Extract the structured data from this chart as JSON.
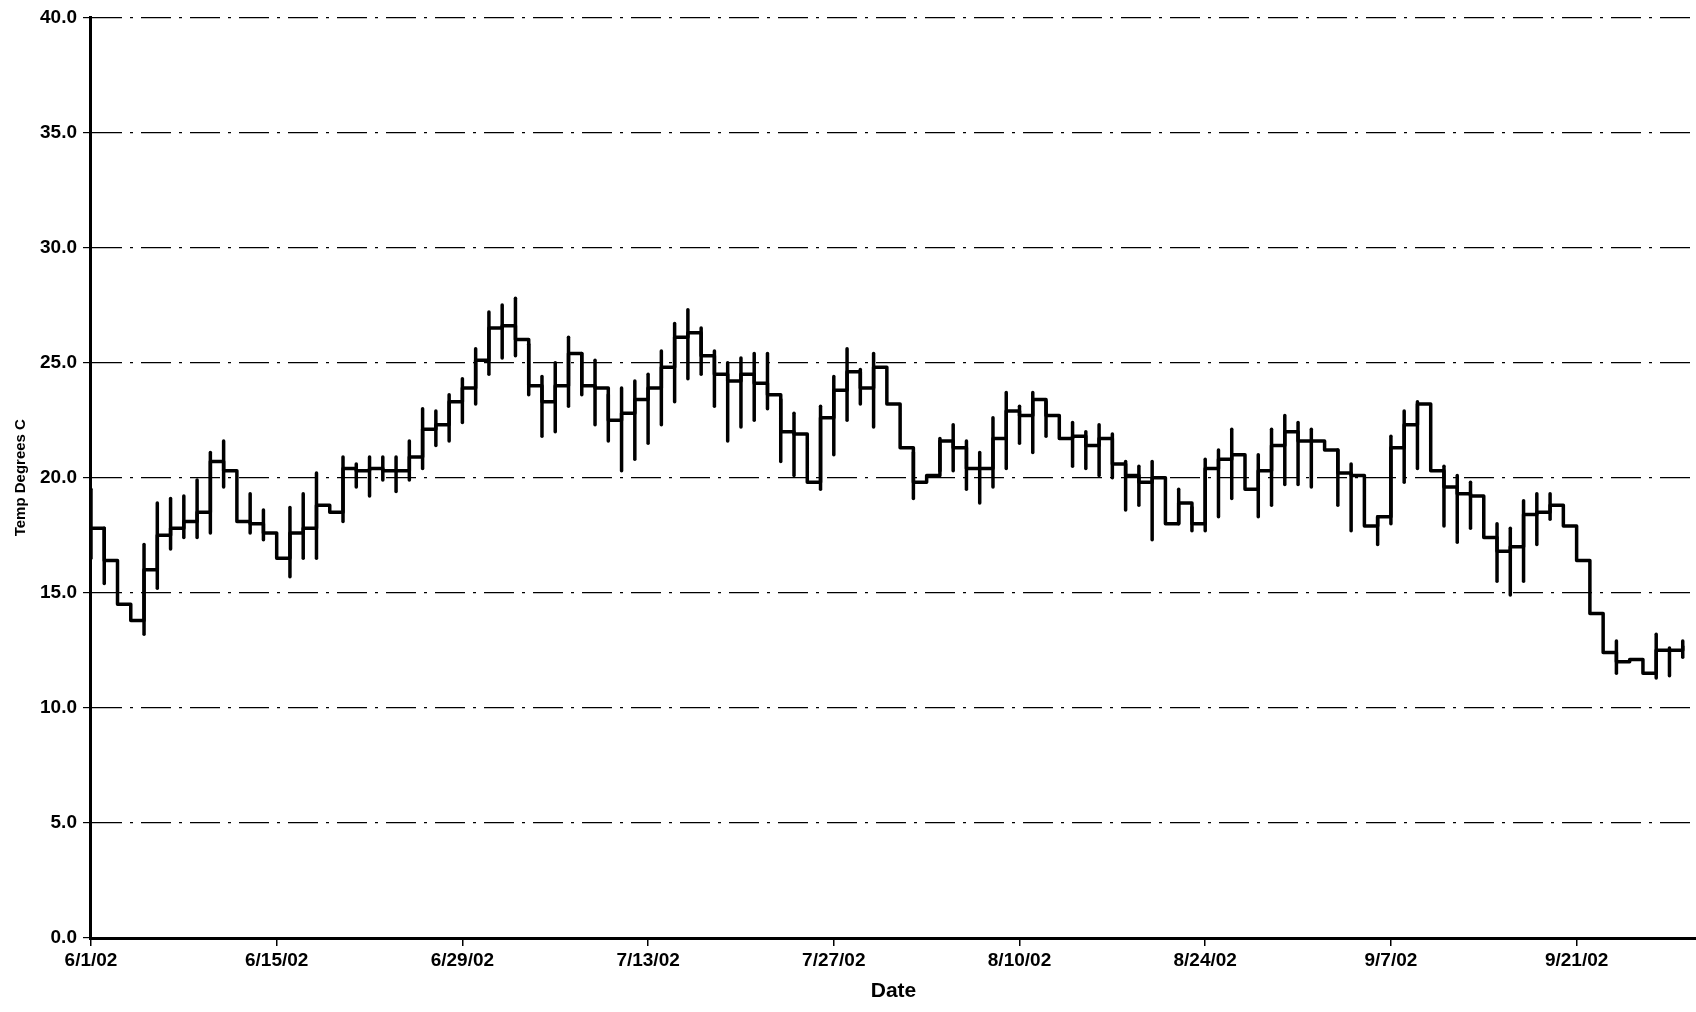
{
  "chart_data": {
    "type": "step",
    "xlabel": "Date",
    "ylabel": "Temp Degrees C",
    "x": [
      "--06-01",
      "--06-02",
      "--06-03",
      "--06-04",
      "--06-05",
      "--06-06",
      "--06-07",
      "--06-08",
      "--06-09",
      "--06-10",
      "--06-11",
      "--06-12",
      "--06-13",
      "--06-14",
      "--06-15",
      "--06-16",
      "--06-17",
      "--06-18",
      "--06-19",
      "--06-20",
      "--06-21",
      "--06-22",
      "--06-23",
      "--06-24",
      "--06-25",
      "--06-26",
      "--06-27",
      "--06-28",
      "--06-29",
      "--06-30",
      "--07-01",
      "--07-02",
      "--07-03",
      "--07-04",
      "--07-05",
      "--07-06",
      "--07-07",
      "--07-08",
      "--07-09",
      "--07-10",
      "--07-11",
      "--07-12",
      "--07-13",
      "--07-14",
      "--07-15",
      "--07-16",
      "--07-17",
      "--07-18",
      "--07-19",
      "--07-20",
      "--07-21",
      "--07-22",
      "--07-23",
      "--07-24",
      "--07-25",
      "--07-26",
      "--07-27",
      "--07-28",
      "--07-29",
      "--07-30",
      "--07-31",
      "--08-01",
      "--08-02",
      "--08-03",
      "--08-04",
      "--08-05",
      "--08-06",
      "--08-07",
      "--08-08",
      "--08-09",
      "--08-10",
      "--08-11",
      "--08-12",
      "--08-13",
      "--08-14",
      "--08-15",
      "--08-16",
      "--08-17",
      "--08-18",
      "--08-19",
      "--08-20",
      "--08-21",
      "--08-22",
      "--08-23",
      "--08-24",
      "--08-25",
      "--08-26",
      "--08-27",
      "--08-28",
      "--08-29",
      "--08-30",
      "--08-31",
      "--09-01",
      "--09-02",
      "--09-03",
      "--09-04",
      "--09-05",
      "--09-06",
      "--09-07",
      "--09-08",
      "--09-09",
      "--09-10",
      "--09-11",
      "--09-12",
      "--09-13",
      "--09-14",
      "--09-15",
      "--09-16",
      "--09-17",
      "--09-18",
      "--09-19",
      "--09-20",
      "--09-21",
      "--09-22",
      "--09-23",
      "--09-24",
      "--09-25",
      "--09-26",
      "--09-27",
      "--09-28",
      "--09-29"
    ],
    "series": [
      {
        "color": "#000000",
        "values": [
          17.8,
          16.4,
          14.5,
          13.8,
          16.0,
          17.5,
          17.8,
          18.1,
          18.5,
          20.7,
          20.3,
          18.1,
          18.0,
          17.6,
          16.5,
          17.6,
          17.8,
          18.8,
          18.5,
          20.4,
          20.3,
          20.4,
          20.3,
          20.3,
          20.9,
          22.1,
          22.3,
          23.3,
          23.9,
          25.1,
          26.5,
          26.6,
          26.0,
          24.0,
          23.3,
          24.0,
          25.4,
          24.0,
          23.9,
          22.5,
          22.8,
          23.4,
          23.9,
          24.8,
          26.1,
          26.3,
          25.3,
          24.5,
          24.2,
          24.5,
          24.1,
          23.6,
          22.0,
          21.9,
          19.8,
          22.6,
          23.8,
          24.6,
          23.9,
          24.8,
          23.2,
          21.3,
          19.8,
          20.1,
          21.6,
          21.3,
          20.4,
          20.4,
          21.7,
          22.9,
          22.7,
          23.4,
          22.7,
          21.7,
          21.8,
          21.4,
          21.7,
          20.6,
          20.1,
          19.8,
          20.0,
          18.0,
          18.9,
          18.0,
          20.4,
          20.8,
          21.0,
          19.5,
          20.3,
          21.4,
          22.0,
          21.6,
          21.6,
          21.2,
          20.2,
          20.1,
          17.9,
          18.3,
          21.3,
          22.3,
          23.2,
          20.3,
          19.6,
          19.3,
          19.2,
          17.4,
          16.8,
          17.0,
          18.4,
          18.5,
          18.8,
          17.9,
          16.4,
          14.1,
          12.4,
          12.0,
          12.1,
          11.5,
          12.5,
          12.5,
          12.7
        ],
        "errors": [
          [
            16.5,
            19.5
          ],
          [
            15.4,
            17.8
          ],
          null,
          null,
          [
            13.2,
            17.1
          ],
          [
            15.2,
            18.9
          ],
          [
            16.9,
            19.1
          ],
          [
            17.4,
            19.2
          ],
          [
            17.4,
            19.9
          ],
          [
            17.6,
            21.1
          ],
          [
            19.6,
            21.6
          ],
          null,
          [
            17.6,
            19.3
          ],
          [
            17.3,
            18.6
          ],
          null,
          [
            15.7,
            18.7
          ],
          [
            16.5,
            19.3
          ],
          [
            16.5,
            20.2
          ],
          null,
          [
            18.1,
            20.9
          ],
          [
            19.6,
            20.6
          ],
          [
            19.2,
            20.9
          ],
          [
            19.9,
            20.9
          ],
          [
            19.4,
            20.9
          ],
          [
            19.9,
            21.6
          ],
          [
            20.4,
            23.0
          ],
          [
            21.4,
            22.9
          ],
          [
            21.6,
            23.6
          ],
          [
            22.4,
            24.3
          ],
          [
            23.2,
            25.6
          ],
          [
            24.5,
            27.2
          ],
          [
            25.2,
            27.5
          ],
          [
            25.3,
            27.8
          ],
          [
            23.6,
            25.8
          ],
          [
            21.8,
            24.4
          ],
          [
            22.0,
            25.0
          ],
          [
            23.1,
            26.1
          ],
          [
            23.6,
            25.4
          ],
          [
            22.3,
            25.1
          ],
          [
            21.6,
            23.6
          ],
          [
            20.3,
            23.9
          ],
          [
            20.8,
            24.2
          ],
          [
            21.5,
            24.5
          ],
          [
            22.3,
            25.5
          ],
          [
            23.3,
            26.7
          ],
          [
            24.3,
            27.3
          ],
          [
            24.5,
            26.5
          ],
          [
            23.1,
            25.5
          ],
          [
            21.6,
            25.0
          ],
          [
            22.2,
            25.2
          ],
          [
            22.5,
            25.4
          ],
          [
            23.0,
            25.4
          ],
          [
            20.7,
            23.4
          ],
          [
            20.1,
            22.8
          ],
          null,
          [
            19.5,
            23.1
          ],
          [
            21.0,
            24.4
          ],
          [
            22.5,
            25.6
          ],
          [
            23.2,
            24.7
          ],
          [
            22.2,
            25.4
          ],
          null,
          null,
          [
            19.1,
            21.1
          ],
          null,
          [
            20.3,
            21.7
          ],
          [
            20.3,
            22.3
          ],
          [
            19.5,
            21.6
          ],
          [
            18.9,
            21.1
          ],
          [
            19.6,
            22.6
          ],
          [
            20.4,
            23.7
          ],
          [
            21.5,
            23.1
          ],
          [
            21.1,
            23.7
          ],
          [
            21.8,
            23.3
          ],
          null,
          [
            20.5,
            22.4
          ],
          [
            20.4,
            22.0
          ],
          [
            20.1,
            22.3
          ],
          [
            20.0,
            21.9
          ],
          [
            18.6,
            20.7
          ],
          [
            18.8,
            20.5
          ],
          [
            17.3,
            20.7
          ],
          null,
          [
            18.0,
            19.5
          ],
          [
            17.7,
            18.7
          ],
          [
            17.7,
            20.8
          ],
          [
            18.3,
            21.2
          ],
          [
            19.1,
            22.1
          ],
          null,
          [
            18.3,
            21.0
          ],
          [
            18.8,
            22.1
          ],
          [
            19.7,
            22.7
          ],
          [
            19.7,
            22.4
          ],
          [
            19.6,
            22.1
          ],
          null,
          [
            18.8,
            21.2
          ],
          [
            17.7,
            20.6
          ],
          null,
          [
            17.1,
            18.3
          ],
          [
            18.0,
            21.8
          ],
          [
            19.8,
            22.9
          ],
          [
            20.4,
            23.3
          ],
          null,
          [
            17.9,
            20.5
          ],
          [
            17.2,
            20.1
          ],
          [
            17.8,
            19.8
          ],
          null,
          [
            15.5,
            18.0
          ],
          [
            14.9,
            17.8
          ],
          [
            15.5,
            19.0
          ],
          [
            17.1,
            19.3
          ],
          [
            18.2,
            19.3
          ],
          null,
          null,
          null,
          null,
          [
            11.5,
            12.9
          ],
          null,
          null,
          [
            11.3,
            13.2
          ],
          [
            11.4,
            12.6
          ],
          [
            12.2,
            12.9
          ]
        ]
      }
    ],
    "xlim": [
      "--06-01",
      "--09-30"
    ],
    "xticks": [
      {
        "value": "--06-01",
        "label": "6/1/02"
      },
      {
        "value": "--06-15",
        "label": "6/15/02"
      },
      {
        "value": "--06-29",
        "label": "6/29/02"
      },
      {
        "value": "--07-13",
        "label": "7/13/02"
      },
      {
        "value": "--07-27",
        "label": "7/27/02"
      },
      {
        "value": "--08-10",
        "label": "8/10/02"
      },
      {
        "value": "--08-24",
        "label": "8/24/02"
      },
      {
        "value": "--09-07",
        "label": "9/7/02"
      },
      {
        "value": "--09-21",
        "label": "9/21/02"
      }
    ],
    "ylim": [
      0,
      40
    ],
    "yticks": [
      {
        "value": 0,
        "label": "0.0"
      },
      {
        "value": 5,
        "label": "5.0"
      },
      {
        "value": 10,
        "label": "10.0"
      },
      {
        "value": 15,
        "label": "15.0"
      },
      {
        "value": 20,
        "label": "20.0"
      },
      {
        "value": 25,
        "label": "25.0"
      },
      {
        "value": 30,
        "label": "30.0"
      },
      {
        "value": 35,
        "label": "35.0"
      },
      {
        "value": 40,
        "label": "40.0"
      }
    ],
    "grid": "y",
    "legend": false,
    "marker": "none",
    "line_style": "solid"
  }
}
